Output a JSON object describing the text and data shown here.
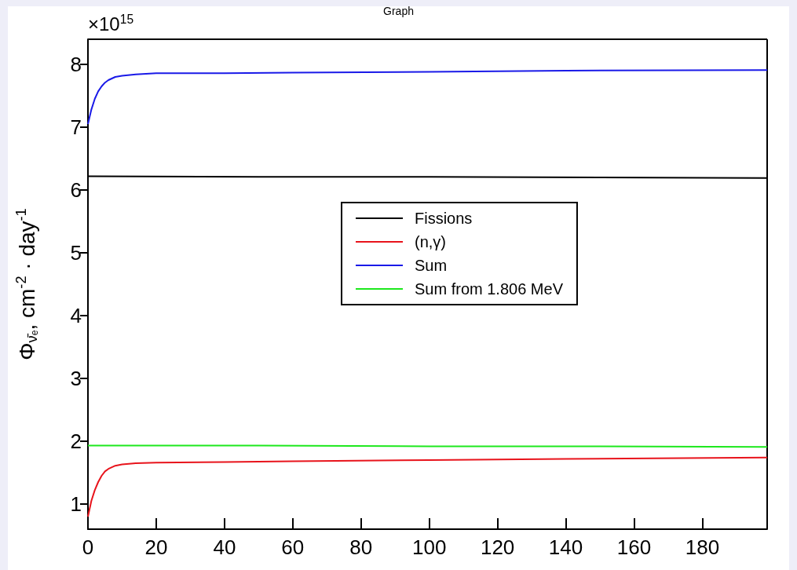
{
  "chart_data": {
    "type": "line",
    "title": "Graph",
    "ylabel": "Φ$_{ν̄ₑ}$, cm$^{-2}$ · day$^{-1}$",
    "annotations": [
      "×10$^{15}$"
    ],
    "xlim": [
      0,
      199
    ],
    "xticks": [
      0,
      20,
      40,
      60,
      80,
      100,
      120,
      140,
      160,
      180
    ],
    "ylim": [
      0.6,
      8.4
    ],
    "yticks": [
      1,
      2,
      3,
      4,
      5,
      6,
      7,
      8
    ],
    "grid": false,
    "legend": "center",
    "marker": "none",
    "line_style": "solid",
    "series": [
      {
        "name": "Fissions",
        "color": "#000000",
        "x": [
          0,
          50,
          100,
          150,
          199
        ],
        "values": [
          6.22,
          6.21,
          6.21,
          6.2,
          6.19
        ]
      },
      {
        "name": "(n,γ)",
        "color": "#e8141c",
        "x": [
          0,
          1,
          2,
          3,
          4,
          5,
          6,
          8,
          10,
          14,
          20,
          40,
          60,
          100,
          140,
          199
        ],
        "values": [
          0.8,
          1.05,
          1.22,
          1.35,
          1.45,
          1.52,
          1.56,
          1.61,
          1.63,
          1.65,
          1.66,
          1.67,
          1.68,
          1.7,
          1.72,
          1.74
        ]
      },
      {
        "name": "Sum",
        "color": "#1a1ae8",
        "x": [
          0,
          1,
          2,
          3,
          4,
          5,
          6,
          8,
          10,
          14,
          20,
          40,
          60,
          100,
          140,
          199
        ],
        "values": [
          7.05,
          7.28,
          7.45,
          7.57,
          7.65,
          7.71,
          7.75,
          7.8,
          7.82,
          7.84,
          7.86,
          7.86,
          7.87,
          7.88,
          7.9,
          7.91
        ]
      },
      {
        "name": "Sum from 1.806 MeV",
        "color": "#1de81d",
        "x": [
          0,
          50,
          100,
          150,
          199
        ],
        "values": [
          1.93,
          1.93,
          1.92,
          1.92,
          1.91
        ]
      }
    ]
  }
}
